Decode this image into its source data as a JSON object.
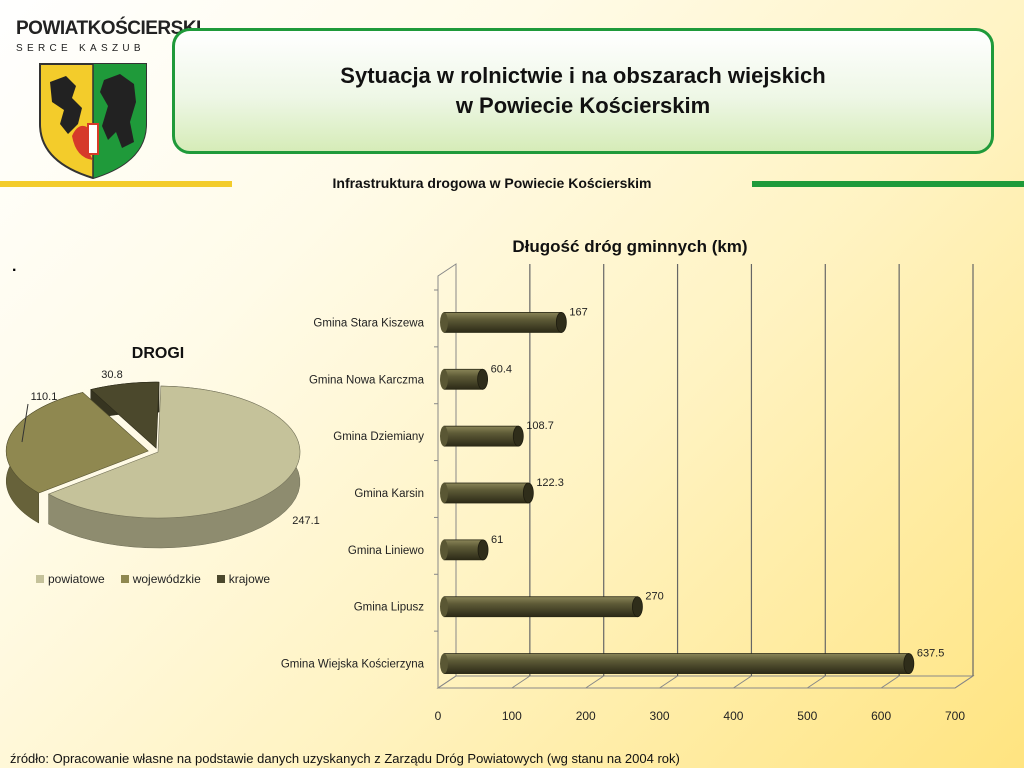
{
  "header": {
    "logo_text": "POWIATKOŚCIERSKI",
    "logo_sub": "SERCE KASZUB",
    "title_line1": "Sytuacja w rolnictwie i na obszarach wiejskich",
    "title_line2": "w Powiecie Kościerskim",
    "subtitle": "Infrastruktura drogowa w Powiecie Kościerskim",
    "dot": "."
  },
  "footer": {
    "source": "źródło: Opracowanie własne na podstawie danych uzyskanych z Zarządu Dróg Powiatowych (wg stanu na 2004 rok)"
  },
  "colors": {
    "accent_green": "#1f9a3a",
    "accent_yellow": "#f3cc2b",
    "bar_dark": "#3d3b22"
  },
  "chart_data": [
    {
      "type": "pie",
      "title": "DROGI",
      "labels": [
        "powiatowe",
        "wojewódzkie",
        "krajowe"
      ],
      "values": [
        247.1,
        110.1,
        30.8
      ],
      "value_labels": [
        "247.1",
        "110.1",
        "30.8"
      ],
      "colors": [
        "#c5c29a",
        "#8f8850",
        "#4b482c"
      ],
      "legend": "bottom"
    },
    {
      "type": "bar",
      "orientation": "horizontal",
      "title": "Długość dróg gminnych (km)",
      "categories": [
        "Gmina Stara Kiszewa",
        "Gmina Nowa Karczma",
        "Gmina Dziemiany",
        "Gmina Karsin",
        "Gmina Liniewo",
        "Gmina Lipusz",
        "Gmina Wiejska Kościerzyna"
      ],
      "values": [
        167,
        60.4,
        108.7,
        122.3,
        61,
        270,
        637.5
      ],
      "value_labels": [
        "167",
        "60.4",
        "108.7",
        "122.3",
        "61",
        "270",
        "637.5"
      ],
      "xlim": [
        0,
        700
      ],
      "xticks": [
        "0",
        "100",
        "200",
        "300",
        "400",
        "500",
        "600",
        "700"
      ],
      "grid": true
    }
  ]
}
